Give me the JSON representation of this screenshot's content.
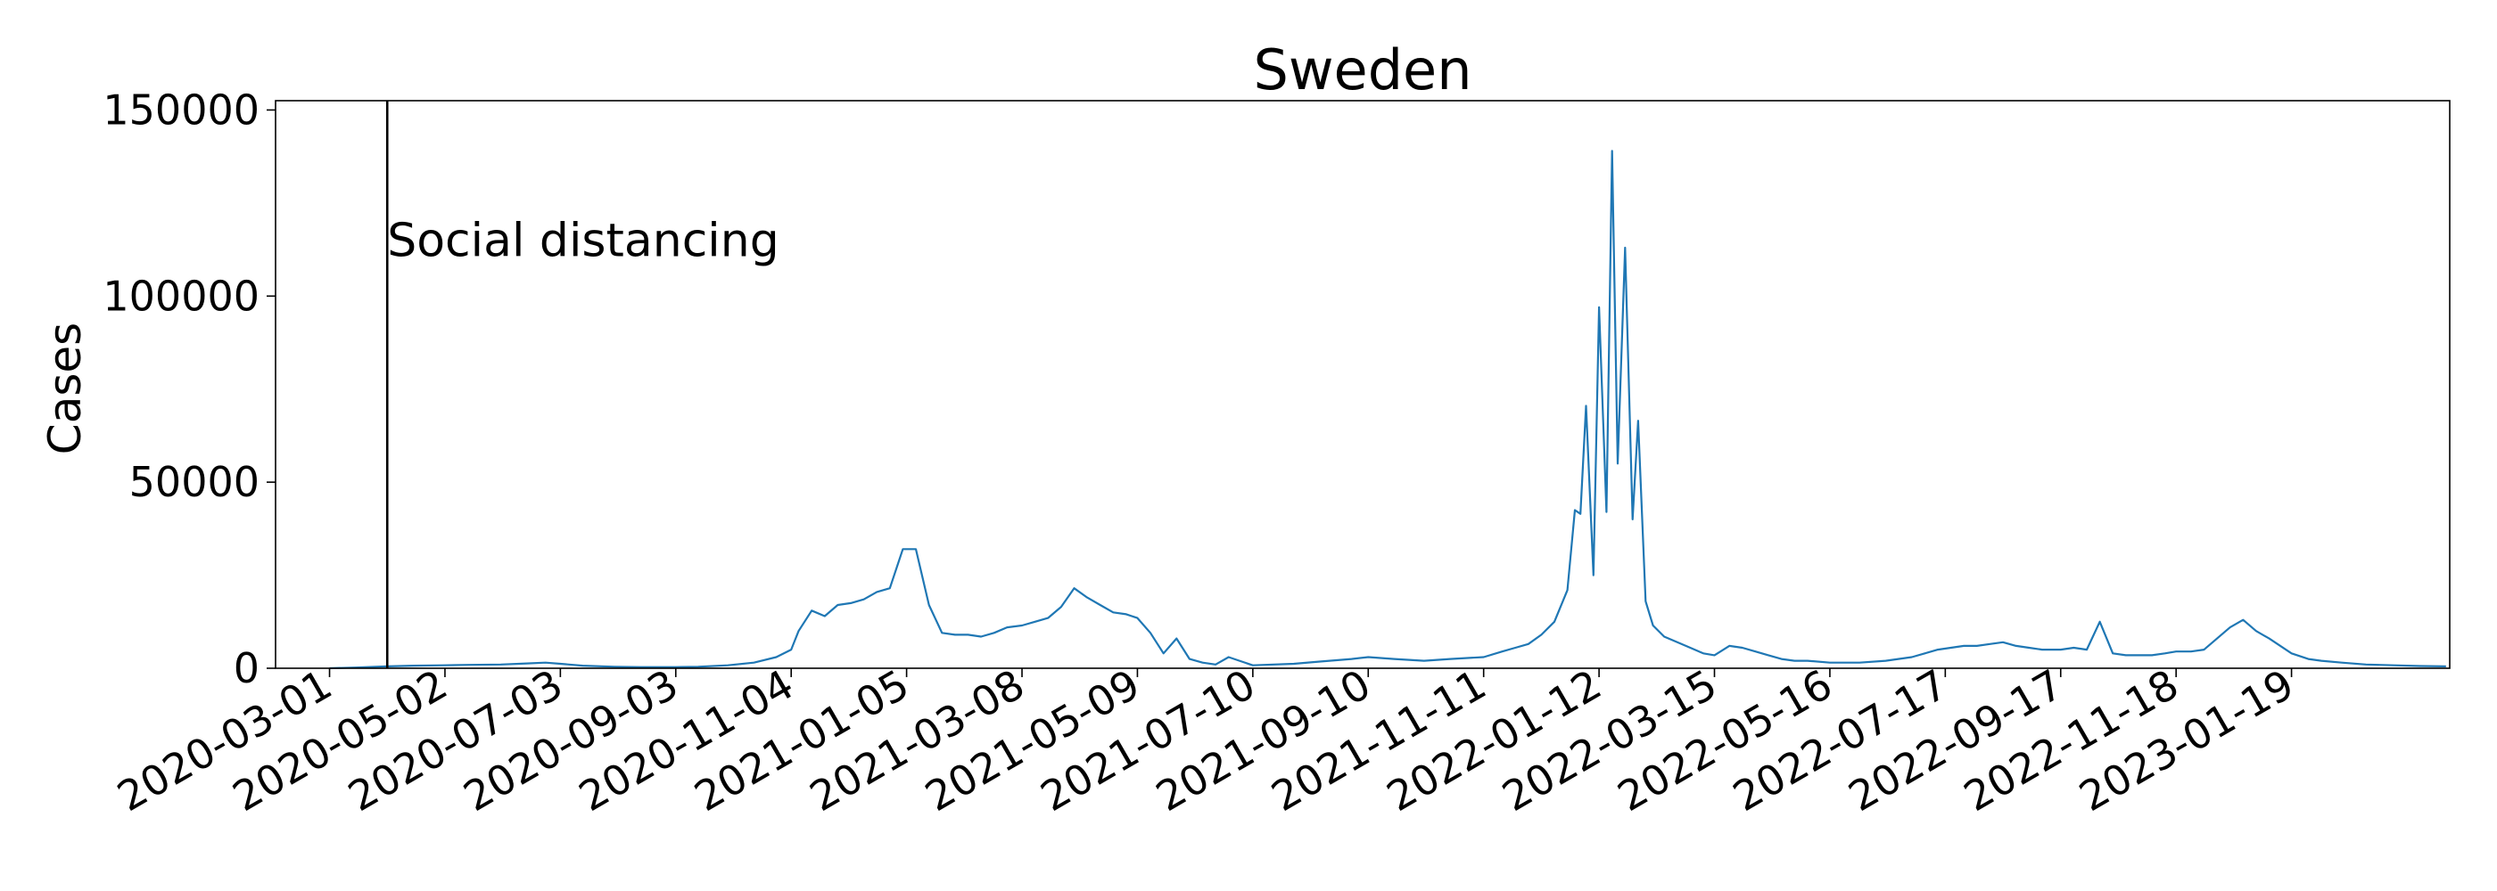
{
  "chart_data": {
    "type": "line",
    "title": "Sweden",
    "xlabel": "",
    "ylabel": "Cases",
    "x_range": [
      "2020-02-01",
      "2023-04-14"
    ],
    "ylim": [
      0,
      152500
    ],
    "y_ticks": [
      0,
      50000,
      100000,
      150000
    ],
    "y_tick_labels": [
      "0",
      "50000",
      "100000",
      "150000"
    ],
    "x_ticks": [
      "2020-03-01",
      "2020-05-02",
      "2020-07-03",
      "2020-09-03",
      "2020-11-04",
      "2021-01-05",
      "2021-03-08",
      "2021-05-09",
      "2021-07-10",
      "2021-09-10",
      "2021-11-11",
      "2022-01-12",
      "2022-03-15",
      "2022-05-16",
      "2022-07-17",
      "2022-09-17",
      "2022-11-18",
      "2023-01-19"
    ],
    "grid": false,
    "line_color": "#1f77b4",
    "annotation": {
      "date": "2020-04-01",
      "text": "Social distancing",
      "y": 115000
    },
    "series": [
      {
        "points": [
          [
            "2020-03-01",
            0
          ],
          [
            "2020-03-15",
            200
          ],
          [
            "2020-04-01",
            500
          ],
          [
            "2020-04-15",
            700
          ],
          [
            "2020-05-01",
            800
          ],
          [
            "2020-05-15",
            900
          ],
          [
            "2020-06-01",
            1000
          ],
          [
            "2020-06-15",
            1300
          ],
          [
            "2020-06-25",
            1500
          ],
          [
            "2020-07-03",
            1200
          ],
          [
            "2020-07-15",
            700
          ],
          [
            "2020-08-01",
            400
          ],
          [
            "2020-08-15",
            300
          ],
          [
            "2020-09-03",
            300
          ],
          [
            "2020-09-15",
            400
          ],
          [
            "2020-10-01",
            800
          ],
          [
            "2020-10-15",
            1500
          ],
          [
            "2020-10-27",
            3000
          ],
          [
            "2020-11-04",
            5000
          ],
          [
            "2020-11-08",
            10000
          ],
          [
            "2020-11-15",
            15500
          ],
          [
            "2020-11-22",
            14000
          ],
          [
            "2020-11-29",
            17000
          ],
          [
            "2020-12-06",
            17500
          ],
          [
            "2020-12-13",
            18500
          ],
          [
            "2020-12-20",
            20500
          ],
          [
            "2020-12-27",
            21500
          ],
          [
            "2021-01-03",
            32000
          ],
          [
            "2021-01-10",
            32000
          ],
          [
            "2021-01-17",
            17000
          ],
          [
            "2021-01-24",
            9500
          ],
          [
            "2021-01-31",
            9000
          ],
          [
            "2021-02-07",
            9000
          ],
          [
            "2021-02-14",
            8500
          ],
          [
            "2021-02-21",
            9500
          ],
          [
            "2021-02-28",
            11000
          ],
          [
            "2021-03-08",
            11500
          ],
          [
            "2021-03-15",
            12500
          ],
          [
            "2021-03-22",
            13500
          ],
          [
            "2021-03-29",
            16500
          ],
          [
            "2021-04-05",
            21500
          ],
          [
            "2021-04-12",
            19000
          ],
          [
            "2021-04-19",
            17000
          ],
          [
            "2021-04-26",
            15000
          ],
          [
            "2021-05-03",
            14500
          ],
          [
            "2021-05-09",
            13500
          ],
          [
            "2021-05-16",
            9500
          ],
          [
            "2021-05-23",
            4000
          ],
          [
            "2021-05-30",
            8000
          ],
          [
            "2021-06-06",
            2500
          ],
          [
            "2021-06-13",
            1500
          ],
          [
            "2021-06-20",
            1000
          ],
          [
            "2021-06-27",
            3000
          ],
          [
            "2021-07-10",
            800
          ],
          [
            "2021-08-01",
            1200
          ],
          [
            "2021-08-15",
            1800
          ],
          [
            "2021-09-01",
            2500
          ],
          [
            "2021-09-10",
            3000
          ],
          [
            "2021-09-24",
            2500
          ],
          [
            "2021-10-10",
            2000
          ],
          [
            "2021-10-24",
            2500
          ],
          [
            "2021-11-11",
            3000
          ],
          [
            "2021-11-21",
            4500
          ],
          [
            "2021-11-28",
            5500
          ],
          [
            "2021-12-05",
            6500
          ],
          [
            "2021-12-12",
            9000
          ],
          [
            "2021-12-19",
            12500
          ],
          [
            "2021-12-26",
            21000
          ],
          [
            "2021-12-30",
            42500
          ],
          [
            "2022-01-02",
            41500
          ],
          [
            "2022-01-05",
            70500
          ],
          [
            "2022-01-09",
            25000
          ],
          [
            "2022-01-12",
            97000
          ],
          [
            "2022-01-16",
            42000
          ],
          [
            "2022-01-19",
            139000
          ],
          [
            "2022-01-22",
            55000
          ],
          [
            "2022-01-26",
            113000
          ],
          [
            "2022-01-30",
            40000
          ],
          [
            "2022-02-02",
            66500
          ],
          [
            "2022-02-06",
            18000
          ],
          [
            "2022-02-10",
            11500
          ],
          [
            "2022-02-16",
            8500
          ],
          [
            "2022-02-23",
            7000
          ],
          [
            "2022-03-02",
            5500
          ],
          [
            "2022-03-09",
            4000
          ],
          [
            "2022-03-15",
            3500
          ],
          [
            "2022-03-23",
            6000
          ],
          [
            "2022-03-30",
            5500
          ],
          [
            "2022-04-06",
            4500
          ],
          [
            "2022-04-13",
            3500
          ],
          [
            "2022-04-20",
            2500
          ],
          [
            "2022-04-27",
            2000
          ],
          [
            "2022-05-04",
            2000
          ],
          [
            "2022-05-16",
            1500
          ],
          [
            "2022-05-25",
            1500
          ],
          [
            "2022-06-01",
            1500
          ],
          [
            "2022-06-15",
            2000
          ],
          [
            "2022-06-29",
            3000
          ],
          [
            "2022-07-06",
            4000
          ],
          [
            "2022-07-13",
            5000
          ],
          [
            "2022-07-20",
            5500
          ],
          [
            "2022-07-27",
            6000
          ],
          [
            "2022-08-03",
            6000
          ],
          [
            "2022-08-10",
            6500
          ],
          [
            "2022-08-17",
            7000
          ],
          [
            "2022-08-24",
            6000
          ],
          [
            "2022-08-31",
            5500
          ],
          [
            "2022-09-07",
            5000
          ],
          [
            "2022-09-17",
            5000
          ],
          [
            "2022-09-24",
            5500
          ],
          [
            "2022-10-01",
            5000
          ],
          [
            "2022-10-08",
            12500
          ],
          [
            "2022-10-15",
            4000
          ],
          [
            "2022-10-22",
            3500
          ],
          [
            "2022-10-29",
            3500
          ],
          [
            "2022-11-05",
            3500
          ],
          [
            "2022-11-12",
            4000
          ],
          [
            "2022-11-18",
            4500
          ],
          [
            "2022-11-26",
            4500
          ],
          [
            "2022-12-03",
            5000
          ],
          [
            "2022-12-10",
            8000
          ],
          [
            "2022-12-17",
            11000
          ],
          [
            "2022-12-24",
            13000
          ],
          [
            "2022-12-31",
            10000
          ],
          [
            "2023-01-07",
            8000
          ],
          [
            "2023-01-19",
            4000
          ],
          [
            "2023-01-28",
            2500
          ],
          [
            "2023-02-04",
            2000
          ],
          [
            "2023-02-15",
            1500
          ],
          [
            "2023-02-28",
            1000
          ],
          [
            "2023-03-15",
            800
          ],
          [
            "2023-03-29",
            600
          ],
          [
            "2023-04-12",
            500
          ]
        ]
      }
    ]
  }
}
